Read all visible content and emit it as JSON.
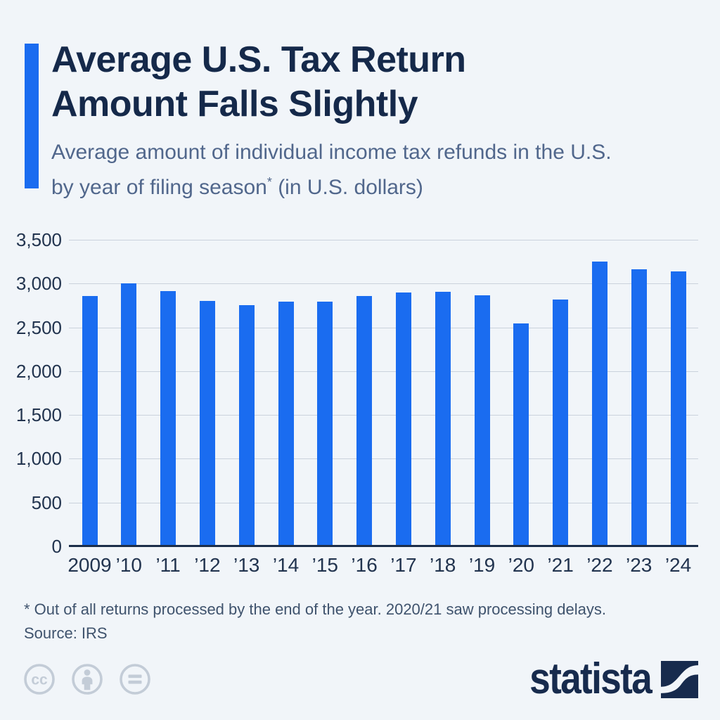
{
  "header": {
    "title_line1": "Average U.S. Tax Return",
    "title_line2": "Amount Falls Slightly",
    "subtitle_line1": "Average amount of individual income tax refunds in the U.S.",
    "subtitle_line2_pre": "by year of filing season",
    "subtitle_line2_sup": "*",
    "subtitle_line2_post": " (in U.S. dollars)"
  },
  "chart_data": {
    "type": "bar",
    "title": "Average U.S. Tax Return Amount Falls Slightly",
    "subtitle": "Average amount of individual income tax refunds in the U.S. by year of filing season* (in U.S. dollars)",
    "categories": [
      "2009",
      "’10",
      "’11",
      "’12",
      "’13",
      "’14",
      "’15",
      "’16",
      "’17",
      "’18",
      "’19",
      "’20",
      "’21",
      "’22",
      "’23",
      "’24"
    ],
    "values": [
      2859,
      3003,
      2913,
      2803,
      2755,
      2792,
      2797,
      2857,
      2895,
      2910,
      2869,
      2549,
      2815,
      3252,
      3167,
      3138
    ],
    "xlabel": "",
    "ylabel": "",
    "ylim": [
      0,
      3500
    ],
    "ytick_values": [
      3500,
      3000,
      2500,
      2000,
      1500,
      1000,
      500,
      0
    ],
    "ytick_labels": [
      "3,500",
      "3,000",
      "2,500",
      "2,000",
      "1,500",
      "1,000",
      "500",
      "0"
    ],
    "grid": "horizontal",
    "legend": "none",
    "bar_color": "#1a6cf0"
  },
  "footer": {
    "footnote": "* Out of all returns processed by the end of the year. 2020/21 saw processing delays.",
    "source": "Source: IRS"
  },
  "branding": {
    "logo_text": "statista",
    "license_icons": [
      "cc-icon",
      "cc-by-person-icon",
      "cc-nd-equals-icon"
    ]
  },
  "colors": {
    "background": "#f1f5f9",
    "accent_blue": "#1a6cf0",
    "title_navy": "#15294a",
    "subtitle_slate": "#51678c",
    "axis_text": "#22344f",
    "gridline": "#cad2dc",
    "axis_line": "#1c2e4a",
    "footnote_text": "#3f536d",
    "license_gray": "#c3ccd7",
    "logo_navy": "#172b4d"
  }
}
